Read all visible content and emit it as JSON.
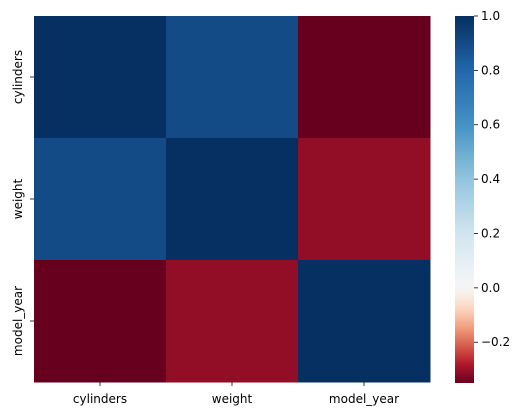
{
  "chart_data": {
    "type": "heatmap",
    "title": "",
    "xlabel": "",
    "ylabel": "",
    "x_labels": [
      "cylinders",
      "weight",
      "model_year"
    ],
    "y_labels": [
      "cylinders",
      "weight",
      "model_year"
    ],
    "values": [
      [
        1.0,
        0.9,
        -0.35
      ],
      [
        0.9,
        1.0,
        -0.31
      ],
      [
        -0.35,
        -0.31,
        1.0
      ]
    ],
    "colorbar": {
      "colormap": "RdBu",
      "vmin": -0.35,
      "vmax": 1.0,
      "ticks": [
        -0.2,
        0.0,
        0.2,
        0.4,
        0.6,
        0.8,
        1.0
      ],
      "tick_labels": [
        "−0.2",
        "0.0",
        "0.2",
        "0.4",
        "0.6",
        "0.8",
        "1.0"
      ]
    }
  }
}
